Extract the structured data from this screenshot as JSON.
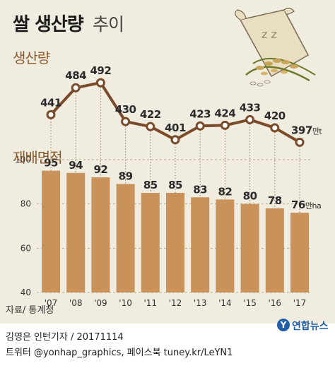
{
  "header": {
    "title_main": "쌀 생산량",
    "title_sub": "추이"
  },
  "chart_data": [
    {
      "type": "line",
      "title": "생산량",
      "x": [
        "'07",
        "'08",
        "'09",
        "'10",
        "'11",
        "'12",
        "'13",
        "'14",
        "'15",
        "'16",
        "'17"
      ],
      "values": [
        441,
        484,
        492,
        430,
        422,
        401,
        423,
        424,
        433,
        420,
        397
      ],
      "value_labels": [
        "441",
        "484",
        "492",
        "430",
        "422",
        "401",
        "423",
        "424",
        "433",
        "420",
        "397"
      ],
      "last_unit": "만t",
      "ylim": [
        385,
        500
      ],
      "color": "#7a4b2a"
    },
    {
      "type": "bar",
      "title": "재배면적",
      "categories": [
        "'07",
        "'08",
        "'09",
        "'10",
        "'11",
        "'12",
        "'13",
        "'14",
        "'15",
        "'16",
        "'17"
      ],
      "values": [
        95,
        94,
        92,
        89,
        85,
        85,
        83,
        82,
        80,
        78,
        76
      ],
      "value_labels": [
        "95",
        "94",
        "92",
        "89",
        "85",
        "85",
        "83",
        "82",
        "80",
        "78",
        "76"
      ],
      "last_unit": "만ha",
      "yticks": [
        100,
        80,
        60,
        40
      ],
      "ytick_labels": [
        "100",
        "80",
        "60",
        "40"
      ],
      "ylim": [
        40,
        100
      ],
      "grid": true,
      "color": "#c8925a"
    }
  ],
  "footer": {
    "source": "자료/ 통계청",
    "credit_line1": "김영은 인턴기자 / 20171114",
    "credit_line2": "트위터 @yonhap_graphics, 페이스북 tuney.kr/LeYN1",
    "logo_text": "연합뉴스",
    "logo_mark": "Y"
  }
}
